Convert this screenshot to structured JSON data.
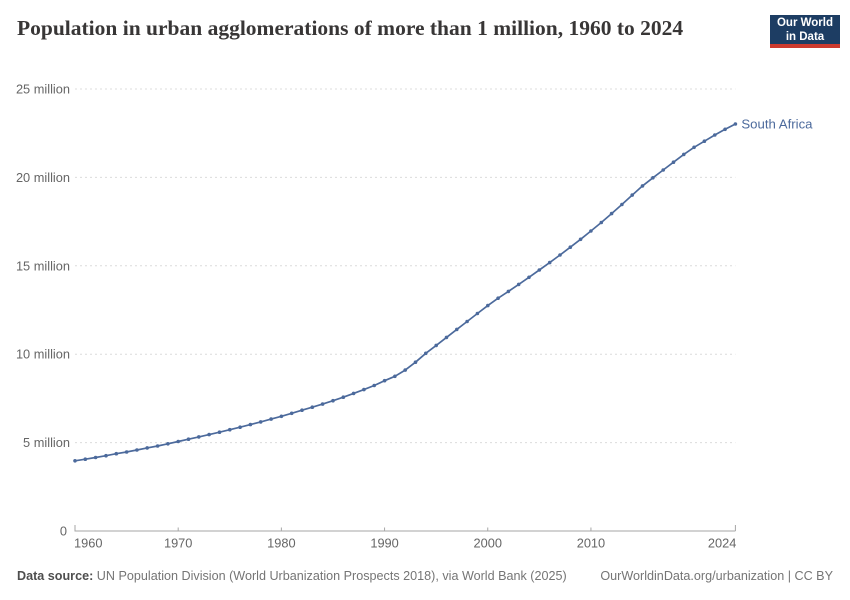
{
  "header": {
    "title": "Population in urban agglomerations of more than 1 million, 1960 to 2024"
  },
  "logo": {
    "line1": "Our World",
    "line2": "in Data",
    "bg": "#1d3d63",
    "accent": "#cc3a2e"
  },
  "chart_data": {
    "type": "line",
    "title": "Population in urban agglomerations of more than 1 million, 1960 to 2024",
    "xlabel": "",
    "ylabel": "",
    "xlim": [
      1960,
      2024
    ],
    "ylim": [
      0,
      25
    ],
    "grid": "horizontal-dashed",
    "legend_position": "end-of-line",
    "x_ticks": [
      1960,
      1970,
      1980,
      1990,
      2000,
      2010,
      2024
    ],
    "y_ticks": [
      {
        "value": 0,
        "label": "0"
      },
      {
        "value": 5,
        "label": "5 million"
      },
      {
        "value": 10,
        "label": "10 million"
      },
      {
        "value": 15,
        "label": "15 million"
      },
      {
        "value": 20,
        "label": "20 million"
      },
      {
        "value": 25,
        "label": "25 million"
      }
    ],
    "unit": "million people",
    "colors": {
      "grid": "#dcdcdc",
      "axis": "#a6a6a6",
      "tick_text": "#666666"
    },
    "series": [
      {
        "name": "South Africa",
        "color": "#4c6a9c",
        "x": [
          1960,
          1961,
          1962,
          1963,
          1964,
          1965,
          1966,
          1967,
          1968,
          1969,
          1970,
          1971,
          1972,
          1973,
          1974,
          1975,
          1976,
          1977,
          1978,
          1979,
          1980,
          1981,
          1982,
          1983,
          1984,
          1985,
          1986,
          1987,
          1988,
          1989,
          1990,
          1991,
          1992,
          1993,
          1994,
          1995,
          1996,
          1997,
          1998,
          1999,
          2000,
          2001,
          2002,
          2003,
          2004,
          2005,
          2006,
          2007,
          2008,
          2009,
          2010,
          2011,
          2012,
          2013,
          2014,
          2015,
          2016,
          2017,
          2018,
          2019,
          2020,
          2021,
          2022,
          2023,
          2024
        ],
        "values": [
          3.97,
          4.06,
          4.16,
          4.26,
          4.37,
          4.47,
          4.58,
          4.7,
          4.81,
          4.93,
          5.06,
          5.19,
          5.32,
          5.45,
          5.59,
          5.73,
          5.87,
          6.02,
          6.17,
          6.33,
          6.49,
          6.66,
          6.83,
          7.0,
          7.18,
          7.37,
          7.57,
          7.78,
          8.0,
          8.23,
          8.5,
          8.75,
          9.1,
          9.55,
          10.05,
          10.5,
          10.95,
          11.4,
          11.85,
          12.3,
          12.75,
          13.17,
          13.55,
          13.95,
          14.35,
          14.76,
          15.18,
          15.61,
          16.05,
          16.5,
          16.97,
          17.45,
          17.95,
          18.47,
          19.0,
          19.52,
          19.98,
          20.42,
          20.86,
          21.3,
          21.7,
          22.05,
          22.4,
          22.72,
          23.02
        ]
      }
    ]
  },
  "footer": {
    "source_label": "Data source:",
    "source_text": " UN Population Division (World Urbanization Prospects 2018), via World Bank (2025)",
    "credit": "OurWorldinData.org/urbanization | CC BY"
  }
}
